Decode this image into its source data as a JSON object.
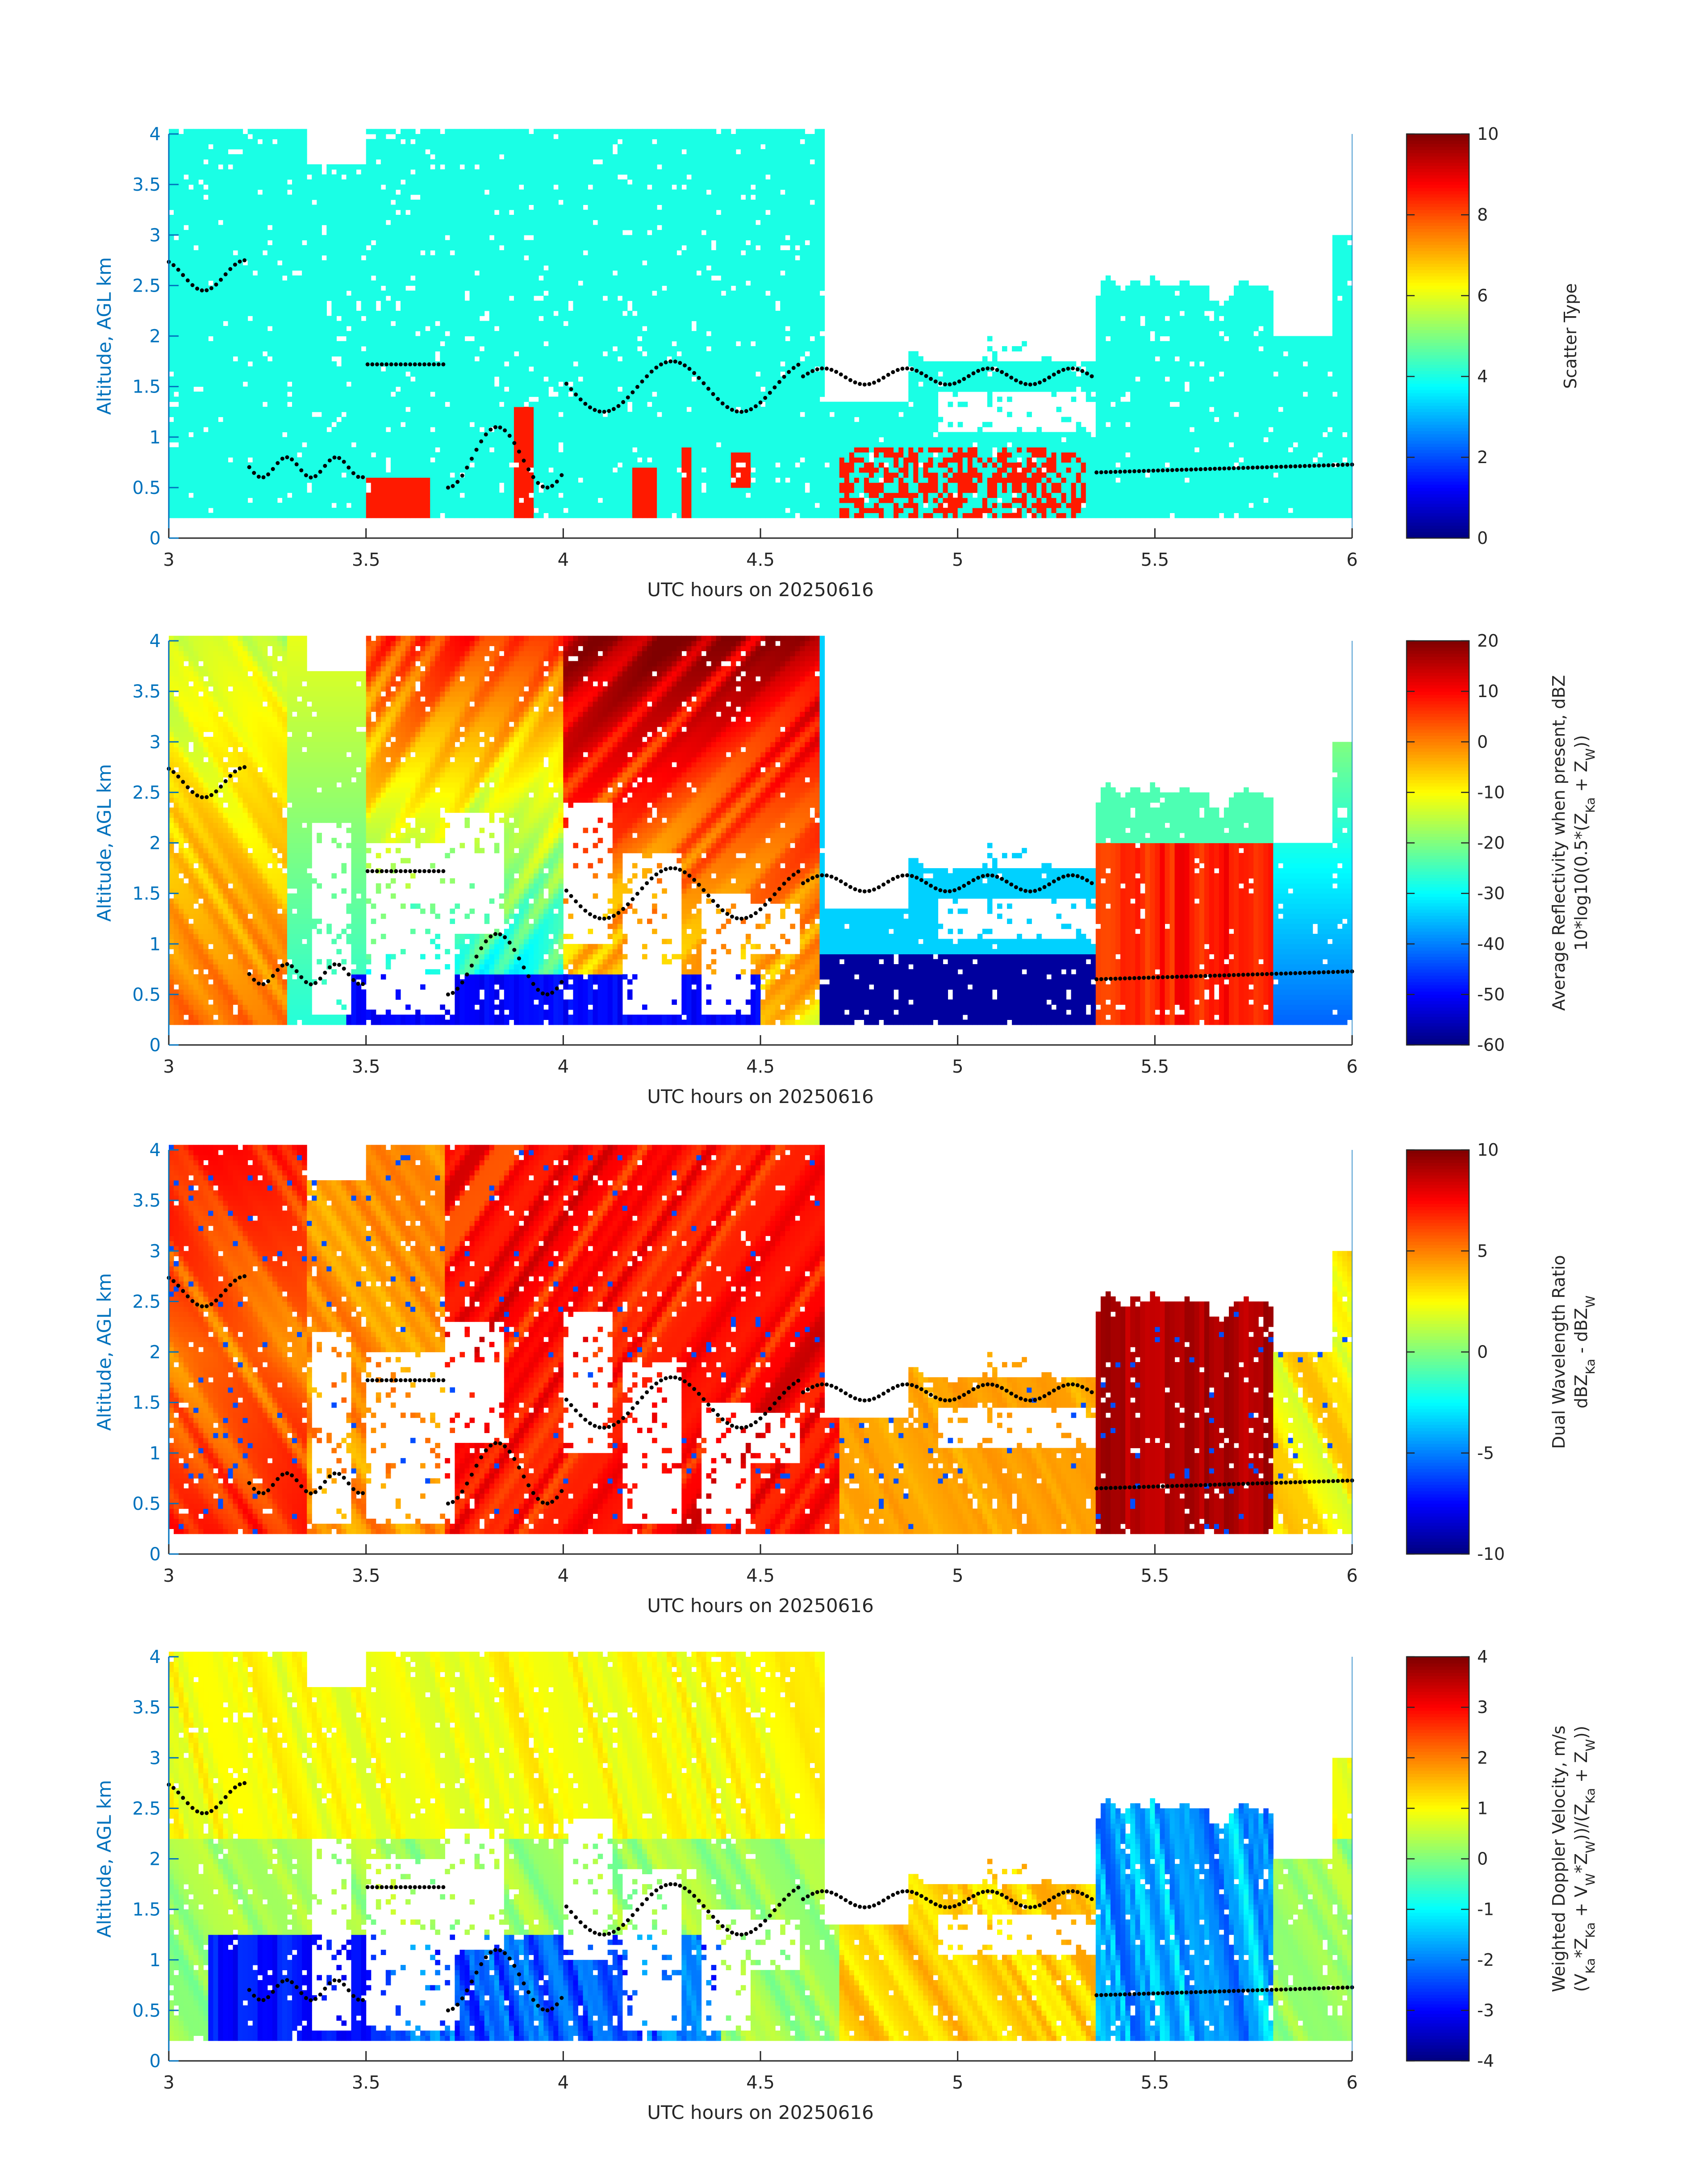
{
  "figure": {
    "panel_count": 4,
    "shared_x_tick_labels": [
      "3",
      "3.5",
      "4",
      "4.5",
      "5",
      "5.5",
      "6"
    ]
  },
  "chart_data": [
    {
      "type": "heatmap",
      "title": "",
      "xlabel": "UTC hours on 20250616",
      "ylabel": "Altitude, AGL km",
      "xlim": [
        3,
        6
      ],
      "ylim": [
        0,
        4
      ],
      "x_ticks": [
        3,
        3.5,
        4,
        4.5,
        5,
        5.5,
        6
      ],
      "y_ticks": [
        0,
        0.5,
        1,
        1.5,
        2,
        2.5,
        3,
        3.5,
        4
      ],
      "colorbar": {
        "label_lines": [
          "Scatter Type"
        ],
        "ticks": [
          0,
          2,
          4,
          6,
          8,
          10
        ],
        "range": [
          0,
          10
        ],
        "colormap": "jet"
      },
      "observed_classes": [
        {
          "value": 4,
          "color": "#19ffe1",
          "extent": "most of the column 0.2–4 km"
        },
        {
          "value": 8.5,
          "color": "#ff4b00",
          "extent": "columns near 3.5–3.65 h, 3.9 h, 4.2–4.3 h, 4.45 h and 4.7–5.3 h, 0.2–1.2 km"
        }
      ],
      "overlay_points": {
        "name": "",
        "color": "#000000"
      }
    },
    {
      "type": "heatmap",
      "title": "",
      "xlabel": "UTC hours on 20250616",
      "ylabel": "Altitude, AGL km",
      "xlim": [
        3,
        6
      ],
      "ylim": [
        0,
        4
      ],
      "x_ticks": [
        3,
        3.5,
        4,
        4.5,
        5,
        5.5,
        6
      ],
      "y_ticks": [
        0,
        0.5,
        1,
        1.5,
        2,
        2.5,
        3,
        3.5,
        4
      ],
      "colorbar": {
        "label_lines": [
          "Average Reflectivity when present, dBZ",
          "10*log10(0.5*(Z",
          "Ka",
          " + Z",
          "W",
          "))"
        ],
        "ticks": [
          -60,
          -50,
          -40,
          -30,
          -20,
          -10,
          0,
          10,
          20
        ],
        "range": [
          -60,
          20
        ],
        "colormap": "jet"
      },
      "overlay_points": {
        "name": "",
        "color": "#000000"
      }
    },
    {
      "type": "heatmap",
      "title": "",
      "xlabel": "UTC hours on 20250616",
      "ylabel": "Altitude, AGL km",
      "xlim": [
        3,
        6
      ],
      "ylim": [
        0,
        4
      ],
      "x_ticks": [
        3,
        3.5,
        4,
        4.5,
        5,
        5.5,
        6
      ],
      "y_ticks": [
        0,
        0.5,
        1,
        1.5,
        2,
        2.5,
        3,
        3.5,
        4
      ],
      "colorbar": {
        "label_lines": [
          "Dual Wavelength Ratio",
          "dBZ",
          "Ka",
          " - dBZ",
          "W"
        ],
        "ticks": [
          -10,
          -5,
          0,
          5,
          10
        ],
        "range": [
          -10,
          10
        ],
        "colormap": "jet"
      },
      "overlay_points": {
        "name": "",
        "color": "#000000"
      }
    },
    {
      "type": "heatmap",
      "title": "",
      "xlabel": "UTC hours on 20250616",
      "ylabel": "Altitude, AGL km",
      "xlim": [
        3,
        6
      ],
      "ylim": [
        0,
        4
      ],
      "x_ticks": [
        3,
        3.5,
        4,
        4.5,
        5,
        5.5,
        6
      ],
      "y_ticks": [
        0,
        0.5,
        1,
        1.5,
        2,
        2.5,
        3,
        3.5,
        4
      ],
      "colorbar": {
        "label_lines": [
          "Weighted Doppler Velocity, m/s",
          "(V",
          "Ka",
          "*Z",
          "Ka",
          " + V",
          "W",
          "*Z",
          "W",
          "))/(Z",
          "Ka",
          " + Z",
          "W",
          "))"
        ],
        "ticks": [
          -4,
          -3,
          -2,
          -1,
          0,
          1,
          2,
          3,
          4
        ],
        "range": [
          -4,
          4
        ],
        "colormap": "jet"
      },
      "overlay_points": {
        "name": "",
        "color": "#000000"
      }
    }
  ]
}
